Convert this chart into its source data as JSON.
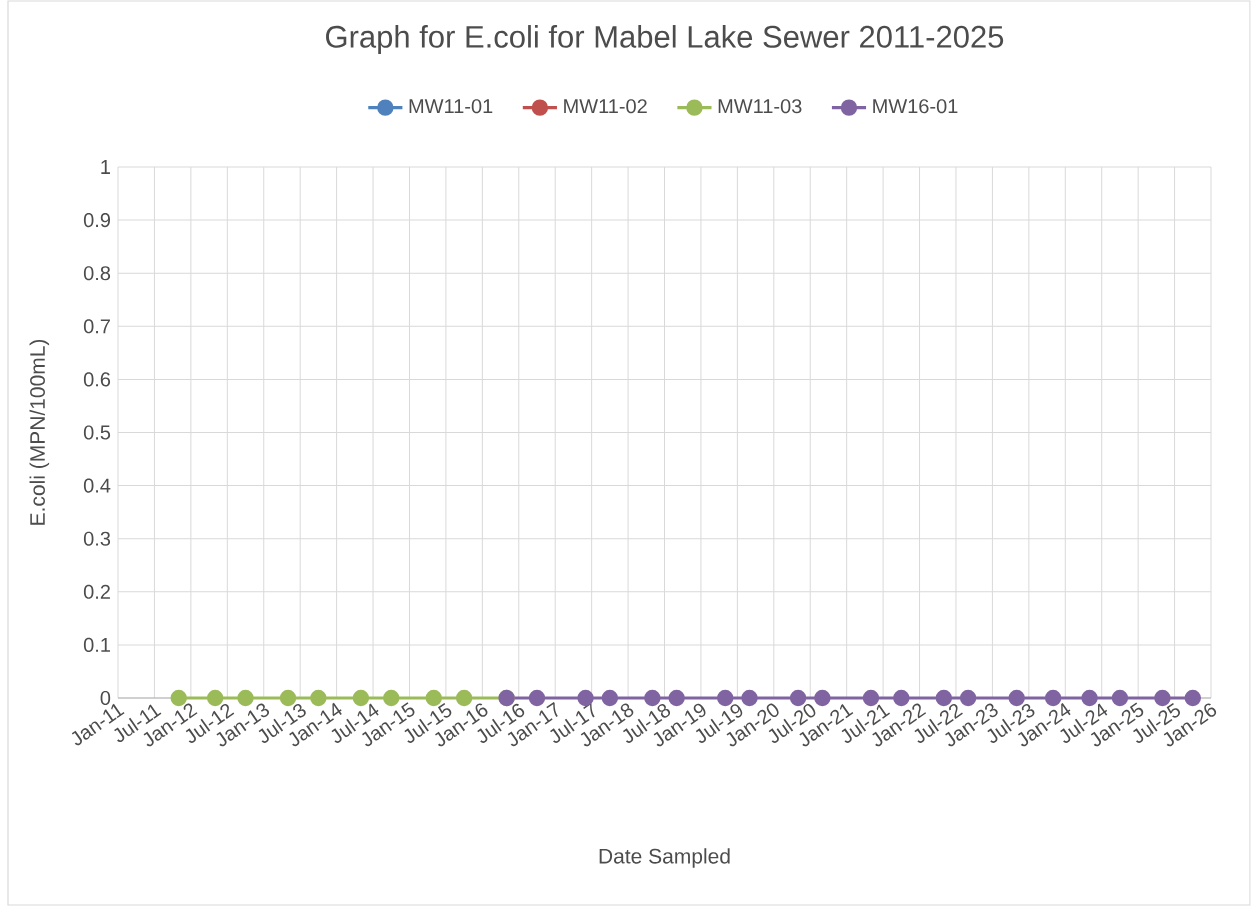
{
  "chart_data": {
    "type": "line",
    "title": "Graph for E.coli for Mabel Lake Sewer 2011-2025",
    "xlabel": "Date Sampled",
    "ylabel": "E.coli (MPN/100mL)",
    "series": [
      {
        "name": "MW11-01",
        "color": "#4f81bd",
        "values": [
          null
        ]
      },
      {
        "name": "MW11-02",
        "color": "#c0504d",
        "values": [
          null
        ]
      },
      {
        "name": "MW11-03",
        "color": "#9bbb59",
        "x": [
          "2011-11",
          "2012-05",
          "2012-10",
          "2013-05",
          "2013-10",
          "2014-05",
          "2014-10",
          "2015-05",
          "2015-10",
          "2016-05"
        ],
        "values": [
          0,
          0,
          0,
          0,
          0,
          0,
          0,
          0,
          0,
          0
        ]
      },
      {
        "name": "MW16-01",
        "color": "#8064a2",
        "x": [
          "2016-05",
          "2016-10",
          "2017-06",
          "2017-10",
          "2018-05",
          "2018-09",
          "2019-05",
          "2019-09",
          "2020-05",
          "2020-09",
          "2021-05",
          "2021-10",
          "2022-05",
          "2022-09",
          "2023-05",
          "2023-11",
          "2024-05",
          "2024-10",
          "2025-05",
          "2025-10"
        ],
        "values": [
          0,
          0,
          0,
          0,
          0,
          0,
          0,
          0,
          0,
          0,
          0,
          0,
          0,
          0,
          0,
          0,
          0,
          0,
          0,
          0
        ]
      }
    ],
    "xlim": [
      "2011-01",
      "2026-01"
    ],
    "xticks": [
      {
        "value": "2011-01",
        "label": "Jan-11"
      },
      {
        "value": "2011-07",
        "label": "Jul-11"
      },
      {
        "value": "2012-01",
        "label": "Jan-12"
      },
      {
        "value": "2012-07",
        "label": "Jul-12"
      },
      {
        "value": "2013-01",
        "label": "Jan-13"
      },
      {
        "value": "2013-07",
        "label": "Jul-13"
      },
      {
        "value": "2014-01",
        "label": "Jan-14"
      },
      {
        "value": "2014-07",
        "label": "Jul-14"
      },
      {
        "value": "2015-01",
        "label": "Jan-15"
      },
      {
        "value": "2015-07",
        "label": "Jul-15"
      },
      {
        "value": "2016-01",
        "label": "Jan-16"
      },
      {
        "value": "2016-07",
        "label": "Jul-16"
      },
      {
        "value": "2017-01",
        "label": "Jan-17"
      },
      {
        "value": "2017-07",
        "label": "Jul-17"
      },
      {
        "value": "2018-01",
        "label": "Jan-18"
      },
      {
        "value": "2018-07",
        "label": "Jul-18"
      },
      {
        "value": "2019-01",
        "label": "Jan-19"
      },
      {
        "value": "2019-07",
        "label": "Jul-19"
      },
      {
        "value": "2020-01",
        "label": "Jan-20"
      },
      {
        "value": "2020-07",
        "label": "Jul-20"
      },
      {
        "value": "2021-01",
        "label": "Jan-21"
      },
      {
        "value": "2021-07",
        "label": "Jul-21"
      },
      {
        "value": "2022-01",
        "label": "Jan-22"
      },
      {
        "value": "2022-07",
        "label": "Jul-22"
      },
      {
        "value": "2023-01",
        "label": "Jan-23"
      },
      {
        "value": "2023-07",
        "label": "Jul-23"
      },
      {
        "value": "2024-01",
        "label": "Jan-24"
      },
      {
        "value": "2024-07",
        "label": "Jul-24"
      },
      {
        "value": "2025-01",
        "label": "Jan-25"
      },
      {
        "value": "2025-07",
        "label": "Jul-25"
      },
      {
        "value": "2026-01",
        "label": "Jan-26"
      }
    ],
    "ylim": [
      0,
      1
    ],
    "yticks": [
      0,
      0.1,
      0.2,
      0.3,
      0.4,
      0.5,
      0.6,
      0.7,
      0.8,
      0.9,
      1
    ],
    "grid": true,
    "legend": "top",
    "marker": "circle",
    "line_style": "solid"
  }
}
